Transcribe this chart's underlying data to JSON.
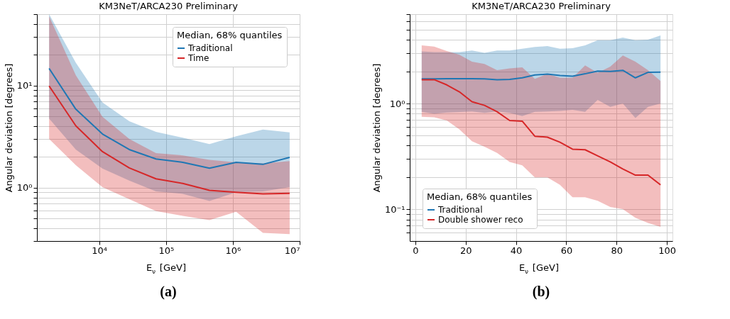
{
  "chart_data": [
    {
      "type": "line",
      "title": "KM3NeT/ARCA230 Preliminary",
      "xlabel": "E$_{ν}$ [GeV]",
      "ylabel": "Angular deviation [degrees]",
      "legend_title": "Median, 68% quantiles",
      "legend": "top right",
      "log": "xy",
      "grid": true,
      "x": [
        1780,
        4470,
        11200,
        28200,
        70800,
        178000,
        447000,
        1120000,
        2820000,
        7080000
      ],
      "xlim": [
        1170,
        10000000
      ],
      "xticks": [
        {
          "value": 10000,
          "label": "10⁴"
        },
        {
          "value": 100000,
          "label": "10⁵"
        },
        {
          "value": 1000000,
          "label": "10⁶"
        },
        {
          "value": 10000000,
          "label": "10⁷"
        }
      ],
      "ylim": [
        0.3,
        50
      ],
      "yticks": [
        {
          "value": 0.3,
          "label": null
        },
        {
          "value": 0.4,
          "label": null
        },
        {
          "value": 0.5,
          "label": null
        },
        {
          "value": 0.6,
          "label": null
        },
        {
          "value": 0.7,
          "label": null
        },
        {
          "value": 0.8,
          "label": null
        },
        {
          "value": 0.9,
          "label": null
        },
        {
          "value": 1,
          "label": "10⁰"
        },
        {
          "value": 2,
          "label": null
        },
        {
          "value": 3,
          "label": null
        },
        {
          "value": 4,
          "label": null
        },
        {
          "value": 5,
          "label": null
        },
        {
          "value": 6,
          "label": null
        },
        {
          "value": 7,
          "label": null
        },
        {
          "value": 8,
          "label": null
        },
        {
          "value": 9,
          "label": null
        },
        {
          "value": 10,
          "label": "10¹"
        },
        {
          "value": 20,
          "label": null
        },
        {
          "value": 30,
          "label": null
        },
        {
          "value": 40,
          "label": null
        },
        {
          "value": 50,
          "label": null
        }
      ],
      "series": [
        {
          "name": "Traditional",
          "color": "#1f77b4",
          "values": [
            14.7,
            5.86,
            3.35,
            2.36,
            1.91,
            1.77,
            1.55,
            1.77,
            1.69,
            1.98
          ],
          "lower": [
            4.75,
            2.36,
            1.54,
            1.17,
            0.92,
            0.87,
            0.74,
            0.9,
            0.92,
            1.01
          ],
          "upper": [
            50,
            16.7,
            6.84,
            4.48,
            3.52,
            3.08,
            2.67,
            3.19,
            3.7,
            3.48
          ]
        },
        {
          "name": "Time",
          "color": "#d62728",
          "values": [
            9.9,
            4.03,
            2.25,
            1.56,
            1.22,
            1.1,
            0.94,
            0.9,
            0.87,
            0.88
          ],
          "lower": [
            3.0,
            1.66,
            1.01,
            0.77,
            0.59,
            0.53,
            0.48,
            0.58,
            0.36,
            0.35
          ],
          "upper": [
            47.7,
            12.6,
            4.94,
            3.0,
            2.18,
            2.07,
            1.87,
            1.77,
            1.73,
            1.82
          ]
        }
      ],
      "annotations": [
        "(a)"
      ]
    },
    {
      "type": "line",
      "title": "KM3NeT/ARCA230 Preliminary",
      "xlabel": "E$_{ν}$ [GeV]",
      "ylabel": "Angular deviation [degrees]",
      "legend_title": "Median, 68% quantiles",
      "legend": "bottom left",
      "log": "y",
      "grid": true,
      "x": [
        2.5,
        7.5,
        12.5,
        17.5,
        22.5,
        27.5,
        32.5,
        37.5,
        42.5,
        47.5,
        52.5,
        57.5,
        62.5,
        67.5,
        72.5,
        77.5,
        82.5,
        87.5,
        92.5,
        97.5
      ],
      "xlim": [
        -2.25,
        102.25
      ],
      "xticks": [
        0,
        20,
        40,
        60,
        80,
        100
      ],
      "ylim": [
        0.05,
        7
      ],
      "yticks": [
        {
          "value": 0.06,
          "label": null
        },
        {
          "value": 0.07,
          "label": null
        },
        {
          "value": 0.08,
          "label": null
        },
        {
          "value": 0.09,
          "label": null
        },
        {
          "value": 0.1,
          "label": "10⁻¹"
        },
        {
          "value": 0.2,
          "label": null
        },
        {
          "value": 0.3,
          "label": null
        },
        {
          "value": 0.4,
          "label": null
        },
        {
          "value": 0.5,
          "label": null
        },
        {
          "value": 0.6,
          "label": null
        },
        {
          "value": 0.7,
          "label": null
        },
        {
          "value": 0.8,
          "label": null
        },
        {
          "value": 0.9,
          "label": null
        },
        {
          "value": 1,
          "label": "10⁰"
        },
        {
          "value": 2,
          "label": null
        },
        {
          "value": 3,
          "label": null
        },
        {
          "value": 4,
          "label": null
        },
        {
          "value": 5,
          "label": null
        },
        {
          "value": 6,
          "label": null
        },
        {
          "value": 7,
          "label": null
        }
      ],
      "series": [
        {
          "name": "Traditional",
          "color": "#1f77b4",
          "values": [
            1.71,
            1.71,
            1.72,
            1.72,
            1.72,
            1.71,
            1.68,
            1.69,
            1.75,
            1.86,
            1.9,
            1.84,
            1.81,
            1.91,
            2.03,
            2.01,
            2.06,
            1.75,
            1.97,
            1.98
          ],
          "lower": [
            0.835,
            0.8,
            0.82,
            0.83,
            0.84,
            0.815,
            0.84,
            0.815,
            0.76,
            0.835,
            0.84,
            0.85,
            0.87,
            0.835,
            1.08,
            0.93,
            1.0,
            0.73,
            0.93,
            1.0
          ],
          "upper": [
            3.11,
            3.06,
            3.06,
            3.06,
            3.17,
            3.02,
            3.17,
            3.17,
            3.3,
            3.43,
            3.49,
            3.3,
            3.33,
            3.55,
            3.97,
            3.97,
            4.2,
            3.97,
            4.01,
            4.41
          ]
        },
        {
          "name": "Double shower reco",
          "color": "#d62728",
          "values": [
            1.68,
            1.68,
            1.5,
            1.29,
            1.04,
            0.96,
            0.835,
            0.69,
            0.68,
            0.49,
            0.48,
            0.43,
            0.37,
            0.365,
            0.32,
            0.28,
            0.24,
            0.21,
            0.21,
            0.17
          ],
          "lower": [
            0.75,
            0.74,
            0.69,
            0.57,
            0.44,
            0.39,
            0.34,
            0.28,
            0.26,
            0.2,
            0.2,
            0.17,
            0.13,
            0.13,
            0.12,
            0.105,
            0.1,
            0.083,
            0.074,
            0.068
          ],
          "upper": [
            3.55,
            3.46,
            3.14,
            2.89,
            2.49,
            2.37,
            2.07,
            2.15,
            2.2,
            1.71,
            1.91,
            1.75,
            1.75,
            2.29,
            1.95,
            2.23,
            2.85,
            2.49,
            2.07,
            1.63
          ]
        }
      ],
      "annotations": [
        "(b)"
      ]
    }
  ]
}
